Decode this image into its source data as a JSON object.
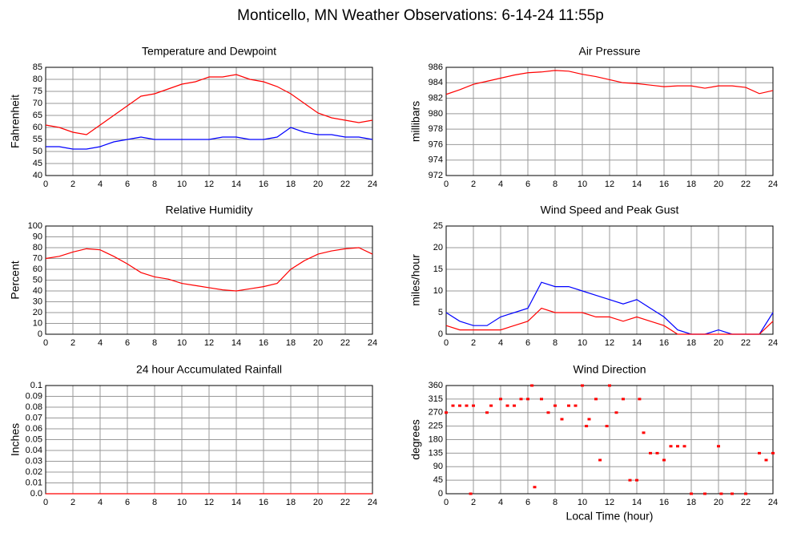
{
  "title": "Monticello, MN Weather Observations: 6-14-24 11:55p",
  "chart_data": [
    {
      "type": "line",
      "title": "Temperature and Dewpoint",
      "ylabel": "Fahrenheit",
      "xlim": [
        0,
        24
      ],
      "xticks": [
        0,
        2,
        4,
        6,
        8,
        10,
        12,
        14,
        16,
        18,
        20,
        22,
        24
      ],
      "ylim": [
        40,
        85
      ],
      "yticks": [
        40,
        45,
        50,
        55,
        60,
        65,
        70,
        75,
        80,
        85
      ],
      "grid": true,
      "x": [
        0,
        1,
        2,
        3,
        4,
        5,
        6,
        7,
        8,
        9,
        10,
        11,
        12,
        13,
        14,
        15,
        16,
        17,
        18,
        19,
        20,
        21,
        22,
        23,
        24
      ],
      "series": [
        {
          "color": "#ff0000",
          "values": [
            61,
            60,
            58,
            57,
            61,
            65,
            69,
            73,
            74,
            76,
            78,
            79,
            81,
            81,
            82,
            80,
            79,
            77,
            74,
            70,
            66,
            64,
            63,
            62,
            63
          ]
        },
        {
          "color": "#0000ff",
          "values": [
            52,
            52,
            51,
            51,
            52,
            54,
            55,
            56,
            55,
            55,
            55,
            55,
            55,
            56,
            56,
            55,
            55,
            56,
            60,
            58,
            57,
            57,
            56,
            56,
            55
          ]
        }
      ]
    },
    {
      "type": "line",
      "title": "Air Pressure",
      "ylabel": "millibars",
      "xlim": [
        0,
        24
      ],
      "xticks": [
        0,
        2,
        4,
        6,
        8,
        10,
        12,
        14,
        16,
        18,
        20,
        22,
        24
      ],
      "ylim": [
        972,
        986
      ],
      "yticks": [
        972,
        974,
        976,
        978,
        980,
        982,
        984,
        986
      ],
      "grid": true,
      "x": [
        0,
        1,
        2,
        3,
        4,
        5,
        6,
        7,
        8,
        9,
        10,
        11,
        12,
        13,
        14,
        15,
        16,
        17,
        18,
        19,
        20,
        21,
        22,
        23,
        24
      ],
      "series": [
        {
          "color": "#ff0000",
          "values": [
            982.5,
            983.1,
            983.8,
            984.2,
            984.6,
            985.0,
            985.3,
            985.4,
            985.6,
            985.5,
            985.1,
            984.8,
            984.4,
            984.0,
            983.9,
            983.7,
            983.5,
            983.6,
            983.6,
            983.3,
            983.6,
            983.6,
            983.4,
            982.6,
            983.0
          ]
        }
      ]
    },
    {
      "type": "line",
      "title": "Relative Humidity",
      "ylabel": "Percent",
      "xlim": [
        0,
        24
      ],
      "xticks": [
        0,
        2,
        4,
        6,
        8,
        10,
        12,
        14,
        16,
        18,
        20,
        22,
        24
      ],
      "ylim": [
        0,
        100
      ],
      "yticks": [
        0,
        10,
        20,
        30,
        40,
        50,
        60,
        70,
        80,
        90,
        100
      ],
      "grid": true,
      "x": [
        0,
        1,
        2,
        3,
        4,
        5,
        6,
        7,
        8,
        9,
        10,
        11,
        12,
        13,
        14,
        15,
        16,
        17,
        18,
        19,
        20,
        21,
        22,
        23,
        24
      ],
      "series": [
        {
          "color": "#ff0000",
          "values": [
            70,
            72,
            76,
            79,
            78,
            72,
            65,
            57,
            53,
            51,
            47,
            45,
            43,
            41,
            40,
            42,
            44,
            47,
            60,
            68,
            74,
            77,
            79,
            80,
            74
          ]
        }
      ]
    },
    {
      "type": "line",
      "title": "Wind Speed and Peak Gust",
      "ylabel": "miles/hour",
      "xlim": [
        0,
        24
      ],
      "xticks": [
        0,
        2,
        4,
        6,
        8,
        10,
        12,
        14,
        16,
        18,
        20,
        22,
        24
      ],
      "ylim": [
        0,
        25
      ],
      "yticks": [
        0,
        5,
        10,
        15,
        20,
        25
      ],
      "grid": true,
      "x": [
        0,
        1,
        2,
        3,
        4,
        5,
        6,
        7,
        8,
        9,
        10,
        11,
        12,
        13,
        14,
        15,
        16,
        17,
        18,
        19,
        20,
        21,
        22,
        23,
        24
      ],
      "series": [
        {
          "color": "#0000ff",
          "values": [
            5,
            3,
            2,
            2,
            4,
            5,
            6,
            12,
            11,
            11,
            10,
            9,
            8,
            7,
            8,
            6,
            4,
            1,
            0,
            0,
            1,
            0,
            0,
            0,
            5
          ]
        },
        {
          "color": "#ff0000",
          "values": [
            2,
            1,
            1,
            1,
            1,
            2,
            3,
            6,
            5,
            5,
            5,
            4,
            4,
            3,
            4,
            3,
            2,
            0,
            0,
            0,
            0,
            0,
            0,
            0,
            3
          ]
        }
      ]
    },
    {
      "type": "line",
      "title": "24 hour Accumulated Rainfall",
      "ylabel": "Inches",
      "xlim": [
        0,
        24
      ],
      "xticks": [
        0,
        2,
        4,
        6,
        8,
        10,
        12,
        14,
        16,
        18,
        20,
        22,
        24
      ],
      "ylim": [
        0,
        0.1
      ],
      "yticks": [
        {
          "value": 0,
          "label": "0.0"
        },
        0.01,
        0.02,
        0.03,
        0.04,
        0.05,
        0.06,
        0.07,
        0.08,
        0.09,
        0.1
      ],
      "grid": true,
      "x": [
        0,
        24
      ],
      "series": [
        {
          "color": "#ff0000",
          "values": [
            0,
            0
          ]
        }
      ]
    },
    {
      "type": "scatter",
      "title": "Wind Direction",
      "ylabel": "degrees",
      "xlabel": "Local Time (hour)",
      "xlim": [
        0,
        24
      ],
      "xticks": [
        0,
        2,
        4,
        6,
        8,
        10,
        12,
        14,
        16,
        18,
        20,
        22,
        24
      ],
      "ylim": [
        0,
        360
      ],
      "yticks": [
        0,
        45,
        90,
        135,
        180,
        225,
        270,
        315,
        360
      ],
      "grid": true,
      "x": [
        0,
        0.5,
        1,
        1.5,
        2,
        1.8,
        3,
        3.3,
        4,
        4.5,
        5,
        5.5,
        6,
        6.3,
        6.5,
        7,
        7.5,
        8,
        8.5,
        9,
        9.5,
        10,
        10.3,
        10.5,
        11,
        11.3,
        11.8,
        12,
        12.5,
        13,
        13.5,
        14,
        14.2,
        14.5,
        15,
        15.5,
        16,
        16.5,
        17,
        17.5,
        18,
        19,
        20,
        20.2,
        21,
        22,
        23,
        23.5,
        24
      ],
      "series": [
        {
          "color": "#ff0000",
          "values": [
            270,
            293,
            293,
            293,
            293,
            0,
            270,
            293,
            315,
            293,
            293,
            315,
            315,
            360,
            22,
            315,
            270,
            293,
            248,
            293,
            293,
            360,
            225,
            248,
            315,
            112,
            225,
            360,
            270,
            315,
            45,
            45,
            315,
            203,
            135,
            135,
            112,
            158,
            158,
            158,
            0,
            0,
            158,
            0,
            0,
            0,
            135,
            112,
            135
          ]
        }
      ]
    }
  ]
}
